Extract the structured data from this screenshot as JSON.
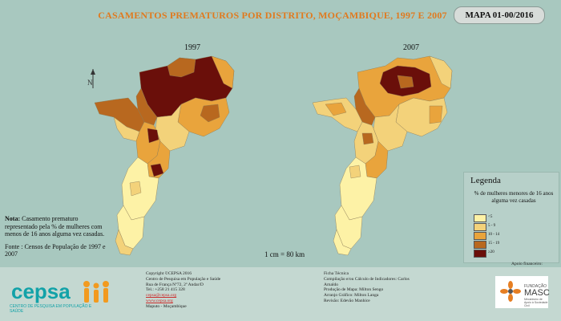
{
  "title": "CASAMENTOS PREMATUROS POR DISTRITO, MOÇAMBIQUE, 1997 E 2007",
  "map_id": "MAPA 01-00/2016",
  "maps": [
    {
      "label": "1997"
    },
    {
      "label": "2007"
    }
  ],
  "north_label": "N",
  "note": {
    "label": "Nota:",
    "text": "Casamento prematuro representado pela % de mulheres com menos de 16 anos alguma vez casadas.",
    "source": "Fonte : Censos de População de 1997 e 2007"
  },
  "scale": "1 cm = 80 km",
  "legend": {
    "title": "Legenda",
    "subtitle": "% de mulheres menores de 16 anos alguma vez casadas",
    "classes": [
      {
        "label": "<5",
        "color": "#fdf2a6"
      },
      {
        "label": "5 - 9",
        "color": "#f3d27a"
      },
      {
        "label": "10 - 14",
        "color": "#e9a43c"
      },
      {
        "label": "15 - 19",
        "color": "#b8681f"
      },
      {
        "label": "≥20",
        "color": "#6a0f0a"
      }
    ]
  },
  "footer": {
    "logo": "cepsa",
    "logo_sub": "CENTRO DE PESQUISA EM POPULAÇÃO E SAÚDE",
    "copyright": "Copyright ©CEPSA 2016",
    "org": "Centro de Pesquisa em População e Saúde",
    "address": "Rua de França Nº72, 2º Andar/D",
    "tel": "Tel.: +258 21 415 328",
    "email": "cepsa@cepsa.org",
    "web": "www.cepsa.org",
    "city": "Maputo - Moçambique",
    "ficha_title": "Ficha Técnica",
    "ficha_1": "Compilação e/ou Cálculo de Indicadores: Carlos Arnaldo",
    "ficha_2": "Produção de Mapa: Milton Sengo",
    "ficha_3": "Arranjo Gráfico: Milton Langa",
    "ficha_4": "Revisão: Edevão Manhice",
    "apoio": "Apoio financeiro:",
    "masc_top": "FUNDAÇÃO",
    "masc_name": "MASC",
    "masc_sub": "Mecanismo de Apoio à Sociedade Civil"
  }
}
